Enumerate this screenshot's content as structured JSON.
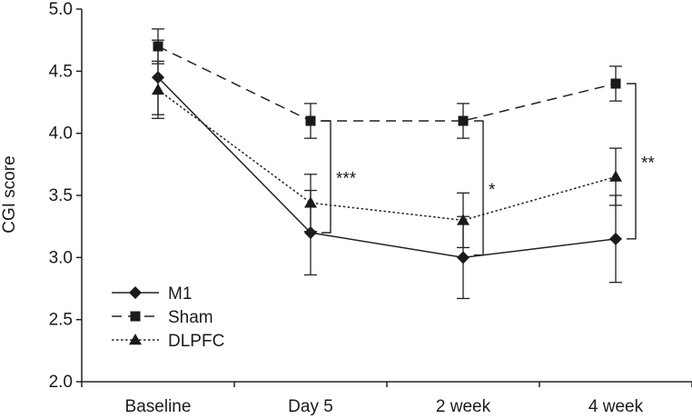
{
  "chart_data": {
    "type": "line",
    "title": "",
    "xlabel": "",
    "ylabel": "CGI score",
    "categories": [
      "Baseline",
      "Day 5",
      "2 week",
      "4 week"
    ],
    "ylim": [
      2.0,
      5.0
    ],
    "yticks": [
      "2.0",
      "2.5",
      "3.0",
      "3.5",
      "4.0",
      "4.5",
      "5.0"
    ],
    "grid": false,
    "legend_position": "bottom-left",
    "series": [
      {
        "name": "M1",
        "marker": "diamond",
        "line_style": "solid",
        "values": [
          4.45,
          3.2,
          3.0,
          3.15
        ],
        "errors": [
          0.3,
          0.34,
          0.33,
          0.35
        ]
      },
      {
        "name": "Sham",
        "marker": "square",
        "line_style": "dashed",
        "values": [
          4.7,
          4.1,
          4.1,
          4.4
        ],
        "errors": [
          0.14,
          0.14,
          0.14,
          0.14
        ]
      },
      {
        "name": "DLPFC",
        "marker": "triangle",
        "line_style": "dotted",
        "values": [
          4.35,
          3.44,
          3.3,
          3.65
        ],
        "errors": [
          0.23,
          0.23,
          0.22,
          0.23
        ]
      }
    ],
    "annotations": [
      {
        "category": "Day 5",
        "label": "***",
        "from": 4.1,
        "to": 3.2
      },
      {
        "category": "2 week",
        "label": "*",
        "from": 4.1,
        "to": 3.02
      },
      {
        "category": "4 week",
        "label": "**",
        "from": 4.4,
        "to": 3.15
      }
    ]
  }
}
